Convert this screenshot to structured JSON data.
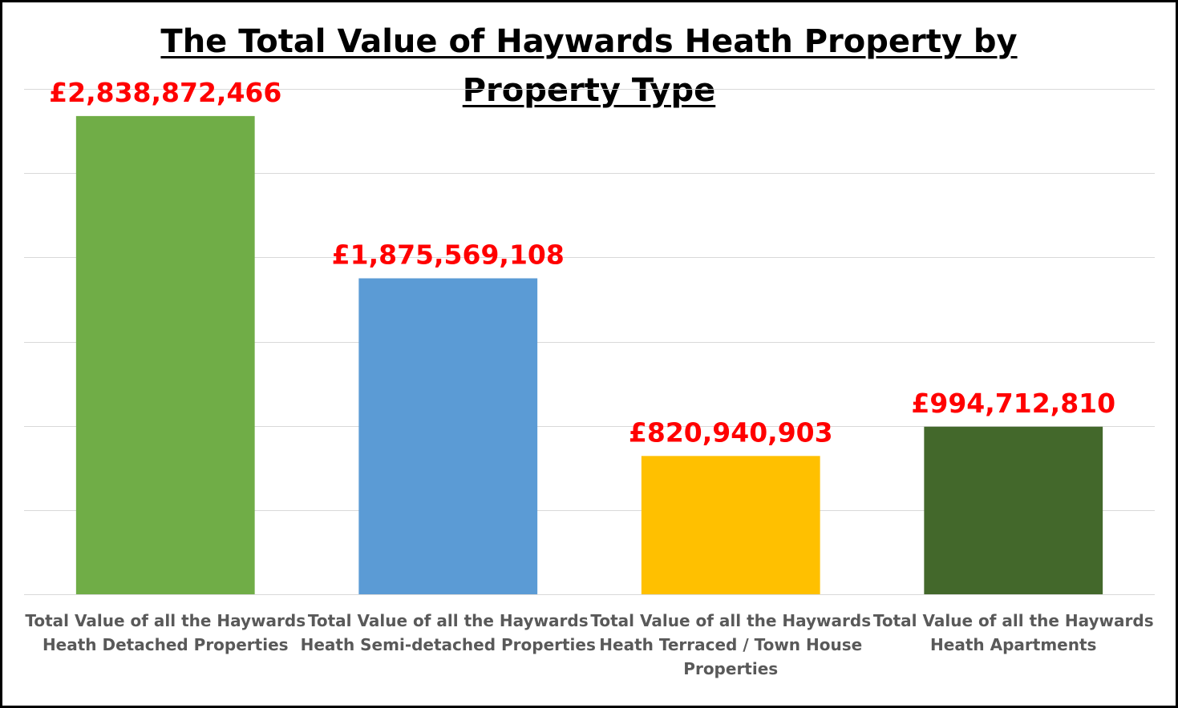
{
  "chart_data": {
    "type": "bar",
    "title": "The Total Value of Haywards Heath Property by Property Type",
    "title_lines": [
      "The Total Value of Haywards Heath Property by",
      "Property Type"
    ],
    "categories": [
      "Total Value of all the Haywards Heath Detached Properties",
      "Total Value of all the Haywards Heath Semi-detached  Properties",
      "Total Value of all the Haywards Heath Terraced / Town House Properties",
      "Total Value of all the Haywards Heath Apartments"
    ],
    "category_lines": [
      [
        "Total Value of all the Haywards",
        "Heath Detached Properties"
      ],
      [
        "Total Value of all the Haywards",
        "Heath Semi-detached  Properties"
      ],
      [
        "Total Value of all the Haywards",
        "Heath Terraced / Town House",
        "Properties"
      ],
      [
        "Total Value of all the Haywards",
        "Heath Apartments"
      ]
    ],
    "values": [
      2838872466,
      1875569108,
      820940903,
      994712810
    ],
    "data_labels": [
      "£2,838,872,466",
      "£1,875,569,108",
      "£820,940,903",
      "£994,712,810"
    ],
    "colors": [
      "#70ad47",
      "#5b9bd5",
      "#ffc000",
      "#43682b"
    ],
    "label_color": "#ff0000",
    "ylim": [
      0,
      3000000000
    ],
    "y_gridline_step": 500000000,
    "grid": true,
    "y_tick_labels_shown": false,
    "legend": "none",
    "xlabel": "",
    "ylabel": ""
  }
}
